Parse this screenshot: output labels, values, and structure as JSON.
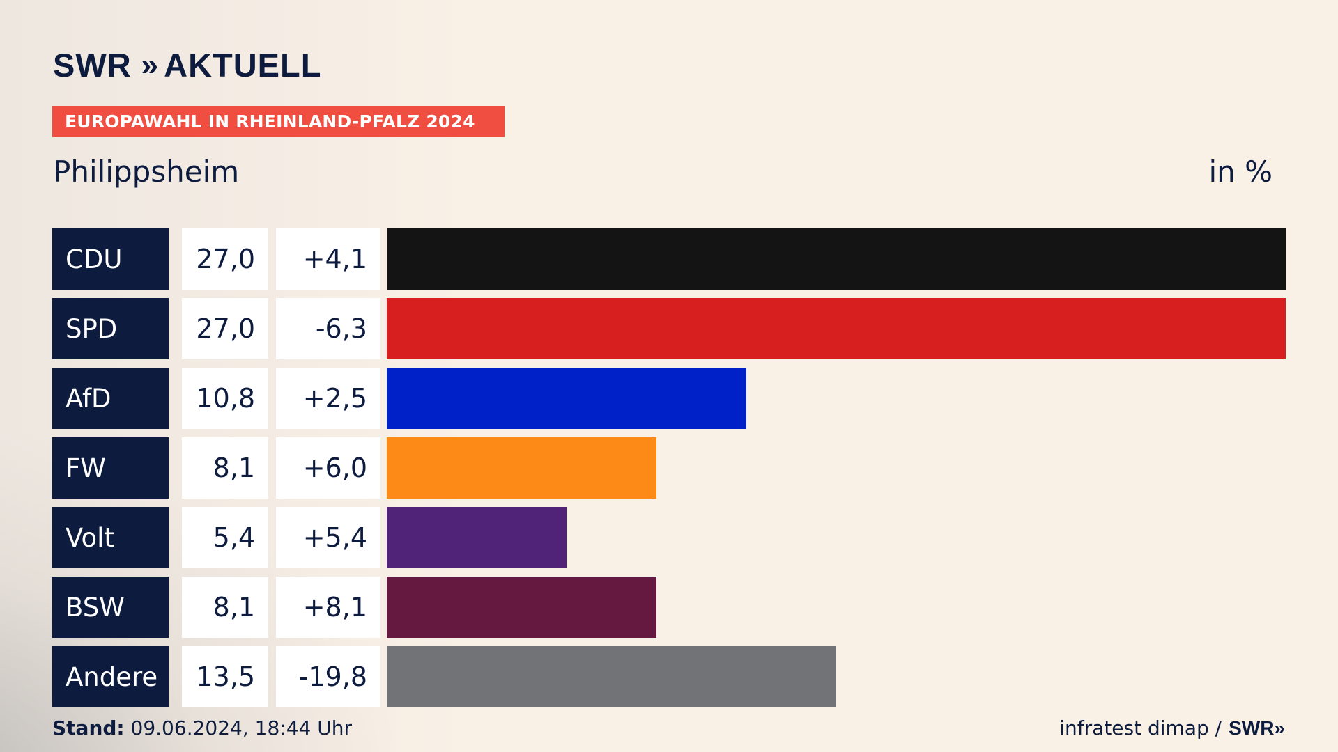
{
  "brand": {
    "logo_text": "SWR",
    "logo_chevrons": "»",
    "logo_title": "AKTUELL"
  },
  "banner": "EUROPAWAHL IN RHEINLAND-PFALZ 2024",
  "subtitle": "Philippsheim",
  "unit": "in %",
  "footer": {
    "stand_label": "Stand:",
    "stand_value": "09.06.2024, 18:44 Uhr",
    "source": "infratest dimap /",
    "source_logo": "SWR»"
  },
  "colors": {
    "CDU": "#141414",
    "SPD": "#d71f1f",
    "AfD": "#0021c8",
    "FW": "#fd8a17",
    "Volt": "#502379",
    "BSW": "#661940",
    "Andere": "#727376"
  },
  "chart_data": {
    "type": "bar",
    "orientation": "horizontal",
    "categories": [
      "CDU",
      "SPD",
      "AfD",
      "FW",
      "Volt",
      "BSW",
      "Andere"
    ],
    "values": [
      27.0,
      27.0,
      10.8,
      8.1,
      5.4,
      8.1,
      13.5
    ],
    "value_labels": [
      "27,0",
      "27,0",
      "10,8",
      "8,1",
      "5,4",
      "8,1",
      "13,5"
    ],
    "change": [
      4.1,
      -6.3,
      2.5,
      6.0,
      5.4,
      8.1,
      -19.8
    ],
    "change_labels": [
      "+4,1",
      "-6,3",
      "+2,5",
      "+6,0",
      "+5,4",
      "+8,1",
      "-19,8"
    ],
    "xlim": [
      0,
      27.0
    ],
    "grid": false,
    "legend": "none"
  }
}
